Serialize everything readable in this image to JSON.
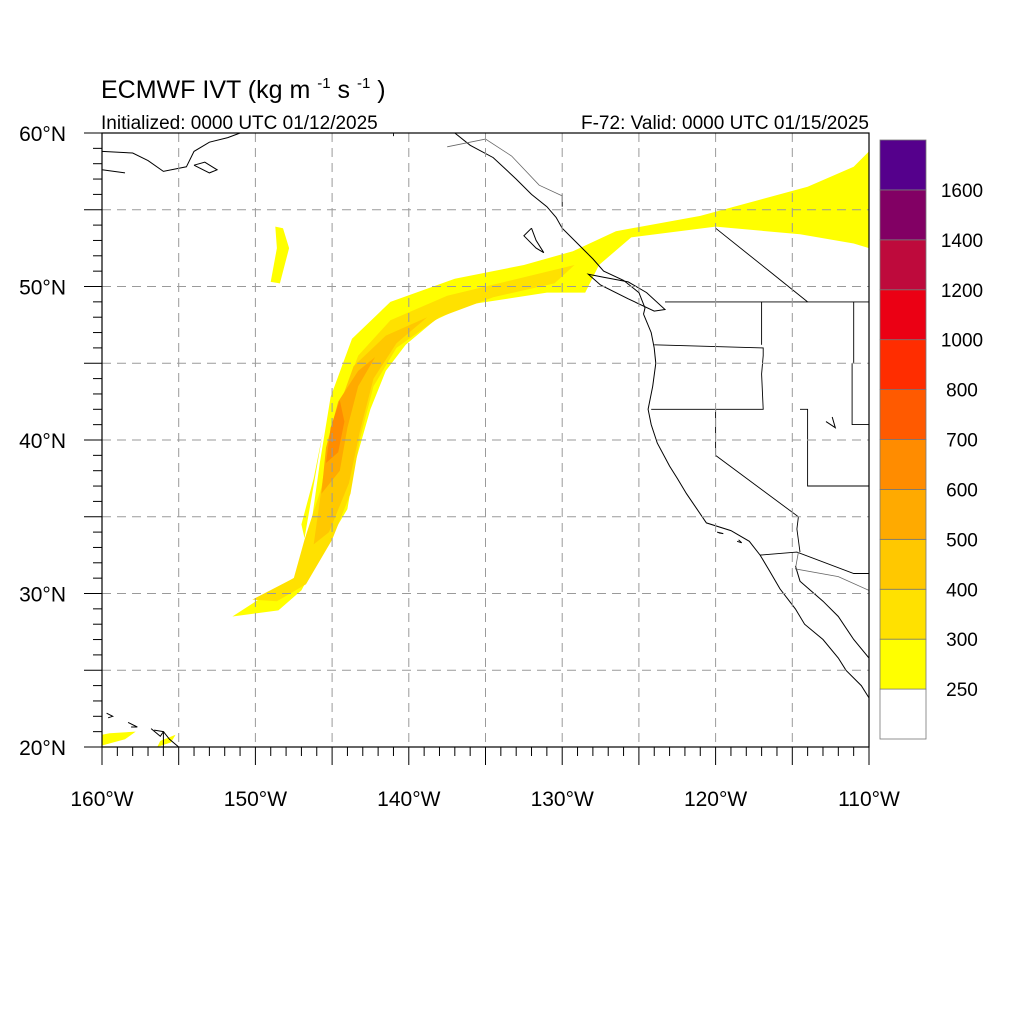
{
  "header": {
    "title": "ECMWF IVT",
    "units_prefix": "(kg m",
    "units_exp1": "-1",
    "units_mid": "s",
    "units_exp2": "-1",
    "units_suffix": ")",
    "initialized": "Initialized: 0000 UTC 01/12/2025",
    "valid": "F-72: Valid: 0000 UTC 01/15/2025"
  },
  "map": {
    "lon_min": -160,
    "lon_max": -110,
    "lat_min": 20,
    "lat_max": 60,
    "lat_labels": [
      {
        "lat": 60,
        "label": "60°N"
      },
      {
        "lat": 50,
        "label": "50°N"
      },
      {
        "lat": 40,
        "label": "40°N"
      },
      {
        "lat": 30,
        "label": "30°N"
      },
      {
        "lat": 20,
        "label": "20°N"
      }
    ],
    "lon_labels": [
      {
        "lon": -160,
        "label": "160°W"
      },
      {
        "lon": -150,
        "label": "150°W"
      },
      {
        "lon": -140,
        "label": "140°W"
      },
      {
        "lon": -130,
        "label": "130°W"
      },
      {
        "lon": -120,
        "label": "120°W"
      },
      {
        "lon": -110,
        "label": "110°W"
      }
    ],
    "grid_lon_step": 5,
    "grid_lat_step": 5,
    "grid_style": "dashed gray"
  },
  "colorbar": {
    "colors": [
      "#ffffff",
      "#ffff00",
      "#ffe100",
      "#ffc800",
      "#ffaa00",
      "#ff8c00",
      "#ff5a00",
      "#ff2d00",
      "#eb0014",
      "#be0a3c",
      "#820064",
      "#55008c"
    ],
    "labels": [
      "250",
      "300",
      "400",
      "500",
      "600",
      "700",
      "800",
      "1000",
      "1200",
      "1400",
      "1600"
    ]
  },
  "ivt_features": [
    {
      "name": "main river outer",
      "level": 1,
      "poly": [
        [
          -151.5,
          28.5
        ],
        [
          -149.5,
          29.8
        ],
        [
          -147.2,
          31.2
        ],
        [
          -146.4,
          34.2
        ],
        [
          -145.8,
          38.5
        ],
        [
          -145.1,
          42.8
        ],
        [
          -143.7,
          46.6
        ],
        [
          -141.2,
          49.0
        ],
        [
          -137,
          50.5
        ],
        [
          -132.5,
          51.4
        ],
        [
          -129.3,
          52.3
        ],
        [
          -126.5,
          53.6
        ],
        [
          -121,
          54.6
        ],
        [
          -114,
          56.5
        ],
        [
          -111,
          57.8
        ],
        [
          -110,
          58.8
        ],
        [
          -110,
          52.5
        ],
        [
          -111,
          52.8
        ],
        [
          -114.5,
          53.4
        ],
        [
          -120,
          53.9
        ],
        [
          -125.5,
          53.2
        ],
        [
          -127.6,
          51.4
        ],
        [
          -128.5,
          49.6
        ],
        [
          -131,
          49.6
        ],
        [
          -136.2,
          48.8
        ],
        [
          -138.3,
          47.8
        ],
        [
          -140.2,
          46.2
        ],
        [
          -141.5,
          44.5
        ],
        [
          -142.5,
          42
        ],
        [
          -143.5,
          38.5
        ],
        [
          -144,
          35.5
        ],
        [
          -145.5,
          33
        ],
        [
          -147,
          30.2
        ],
        [
          -148.5,
          28.9
        ]
      ]
    },
    {
      "name": "main river level 400",
      "level": 2,
      "poly": [
        [
          -150.2,
          29.6
        ],
        [
          -147.5,
          31
        ],
        [
          -146.8,
          33.5
        ],
        [
          -145.5,
          37.5
        ],
        [
          -144.8,
          41.5
        ],
        [
          -143.3,
          45.5
        ],
        [
          -141.2,
          47.8
        ],
        [
          -137.5,
          49.4
        ],
        [
          -132.5,
          50.6
        ],
        [
          -129.2,
          51.4
        ],
        [
          -130.5,
          50.2
        ],
        [
          -134.5,
          49.3
        ],
        [
          -138,
          48
        ],
        [
          -140.8,
          46
        ],
        [
          -142.3,
          43.5
        ],
        [
          -143.2,
          40
        ],
        [
          -143.8,
          36.5
        ],
        [
          -145,
          33.5
        ],
        [
          -146.7,
          30.6
        ],
        [
          -148.6,
          29.5
        ]
      ]
    },
    {
      "name": "main river level 500",
      "level": 3,
      "poly": [
        [
          -146.2,
          33.2
        ],
        [
          -145.6,
          37.5
        ],
        [
          -144.8,
          41.5
        ],
        [
          -143.6,
          44.8
        ],
        [
          -141.5,
          46.8
        ],
        [
          -138.8,
          48
        ],
        [
          -140.8,
          46.3
        ],
        [
          -142.3,
          44
        ],
        [
          -143.2,
          40.5
        ],
        [
          -143.9,
          37.2
        ],
        [
          -145.2,
          34
        ]
      ]
    },
    {
      "name": "main river level 600",
      "level": 4,
      "poly": [
        [
          -145.7,
          36.5
        ],
        [
          -145.4,
          39.5
        ],
        [
          -144.6,
          42.5
        ],
        [
          -143.3,
          44.5
        ],
        [
          -142.2,
          45.4
        ],
        [
          -143.3,
          43.5
        ],
        [
          -144,
          40.8
        ],
        [
          -144.5,
          38
        ]
      ]
    },
    {
      "name": "main river level 700",
      "level": 5,
      "poly": [
        [
          -145.4,
          38.5
        ],
        [
          -145.1,
          40.8
        ],
        [
          -144.5,
          42.6
        ],
        [
          -144.2,
          41.2
        ],
        [
          -144.6,
          39.2
        ]
      ]
    },
    {
      "name": "western fringe streaks",
      "level": 1,
      "poly": [
        [
          -146.8,
          33.6
        ],
        [
          -146.3,
          36.5
        ],
        [
          -145.6,
          40.5
        ],
        [
          -146.2,
          37.5
        ],
        [
          -147,
          34.5
        ]
      ]
    },
    {
      "name": "small plume 52N",
      "level": 1,
      "poly": [
        [
          -148.2,
          53.8
        ],
        [
          -147.8,
          52.5
        ],
        [
          -148.4,
          50.2
        ],
        [
          -149,
          50.3
        ],
        [
          -148.6,
          52.5
        ],
        [
          -148.7,
          53.9
        ]
      ]
    },
    {
      "name": "hawaii plume A",
      "level": 1,
      "poly": [
        [
          -160,
          20.1
        ],
        [
          -158.5,
          20.5
        ],
        [
          -157.8,
          21.0
        ],
        [
          -159.5,
          20.9
        ],
        [
          -160,
          20.8
        ]
      ]
    },
    {
      "name": "hawaii plume B",
      "level": 1,
      "poly": [
        [
          -156.4,
          20
        ],
        [
          -155.5,
          20.3
        ],
        [
          -155.2,
          20.8
        ],
        [
          -156.2,
          20.4
        ]
      ]
    }
  ]
}
